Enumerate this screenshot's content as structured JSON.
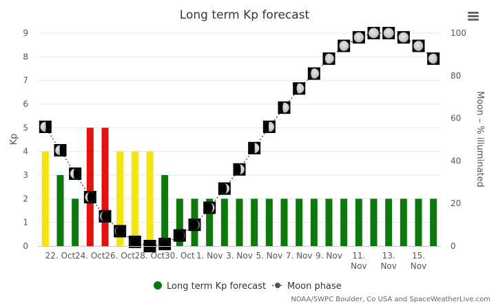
{
  "chart_data": {
    "type": "bar",
    "title": "Long term Kp forecast",
    "ylabel": "Kp",
    "y2label": "Moon – % illuminated",
    "ylim": [
      0,
      9
    ],
    "y2lim": [
      0,
      100
    ],
    "yticks": [
      0,
      1,
      2,
      3,
      4,
      5,
      6,
      7,
      8,
      9
    ],
    "y2ticks": [
      0,
      20,
      40,
      60,
      80,
      100
    ],
    "categories": [
      "21 Oct",
      "22 Oct",
      "23 Oct",
      "24 Oct",
      "25 Oct",
      "26 Oct",
      "27 Oct",
      "28 Oct",
      "29 Oct",
      "30 Oct",
      "31 Oct",
      "1 Nov",
      "2 Nov",
      "3 Nov",
      "4 Nov",
      "5 Nov",
      "6 Nov",
      "7 Nov",
      "8 Nov",
      "9 Nov",
      "10 Nov",
      "11 Nov",
      "12 Nov",
      "13 Nov",
      "14 Nov",
      "15 Nov",
      "16 Nov"
    ],
    "xtick_labels": [
      {
        "index": 1,
        "lines": [
          "22. Oct"
        ]
      },
      {
        "index": 3,
        "lines": [
          "24. Oct"
        ]
      },
      {
        "index": 5,
        "lines": [
          "26. Oct"
        ]
      },
      {
        "index": 7,
        "lines": [
          "28. Oct"
        ]
      },
      {
        "index": 9,
        "lines": [
          "30. Oct"
        ]
      },
      {
        "index": 11,
        "lines": [
          "1. Nov"
        ]
      },
      {
        "index": 13,
        "lines": [
          "3. Nov"
        ]
      },
      {
        "index": 15,
        "lines": [
          "5. Nov"
        ]
      },
      {
        "index": 17,
        "lines": [
          "7. Nov"
        ]
      },
      {
        "index": 19,
        "lines": [
          "9. Nov"
        ]
      },
      {
        "index": 21,
        "lines": [
          "11.",
          "Nov"
        ]
      },
      {
        "index": 23,
        "lines": [
          "13.",
          "Nov"
        ]
      },
      {
        "index": 25,
        "lines": [
          "15.",
          "Nov"
        ]
      }
    ],
    "series": [
      {
        "name": "Long term Kp forecast",
        "type": "bar",
        "axis": "left",
        "legend_color": "#0b7a0b",
        "values": [
          4,
          3,
          2,
          5,
          5,
          4,
          4,
          4,
          3,
          2,
          2,
          2,
          2,
          2,
          2,
          2,
          2,
          2,
          2,
          2,
          2,
          2,
          2,
          2,
          2,
          2,
          2
        ],
        "colors": [
          "#f4e40b",
          "#0b7a0b",
          "#0b7a0b",
          "#e8100c",
          "#e8100c",
          "#f4e40b",
          "#f4e40b",
          "#f4e40b",
          "#0b7a0b",
          "#0b7a0b",
          "#0b7a0b",
          "#0b7a0b",
          "#0b7a0b",
          "#0b7a0b",
          "#0b7a0b",
          "#0b7a0b",
          "#0b7a0b",
          "#0b7a0b",
          "#0b7a0b",
          "#0b7a0b",
          "#0b7a0b",
          "#0b7a0b",
          "#0b7a0b",
          "#0b7a0b",
          "#0b7a0b",
          "#0b7a0b",
          "#0b7a0b"
        ]
      },
      {
        "name": "Moon phase",
        "type": "line",
        "axis": "right",
        "style": "dotted",
        "values": [
          56,
          45,
          34,
          23,
          14,
          7,
          2,
          0,
          1,
          5,
          10,
          18,
          27,
          36,
          46,
          56,
          65,
          74,
          81,
          88,
          94,
          98,
          100,
          100,
          98,
          94,
          88
        ]
      }
    ]
  },
  "ui": {
    "menu_icon": "hamburger-icon",
    "credits": "NOAA/SWPC Boulder, Co USA and SpaceWeatherLive.com"
  },
  "colors": {
    "grid": "#e6e6e6",
    "axis_text": "#555555",
    "title_text": "#333333",
    "moon_bg": "#000000",
    "moon_lit": "#cfcfcf",
    "moon_line": "#555555"
  }
}
